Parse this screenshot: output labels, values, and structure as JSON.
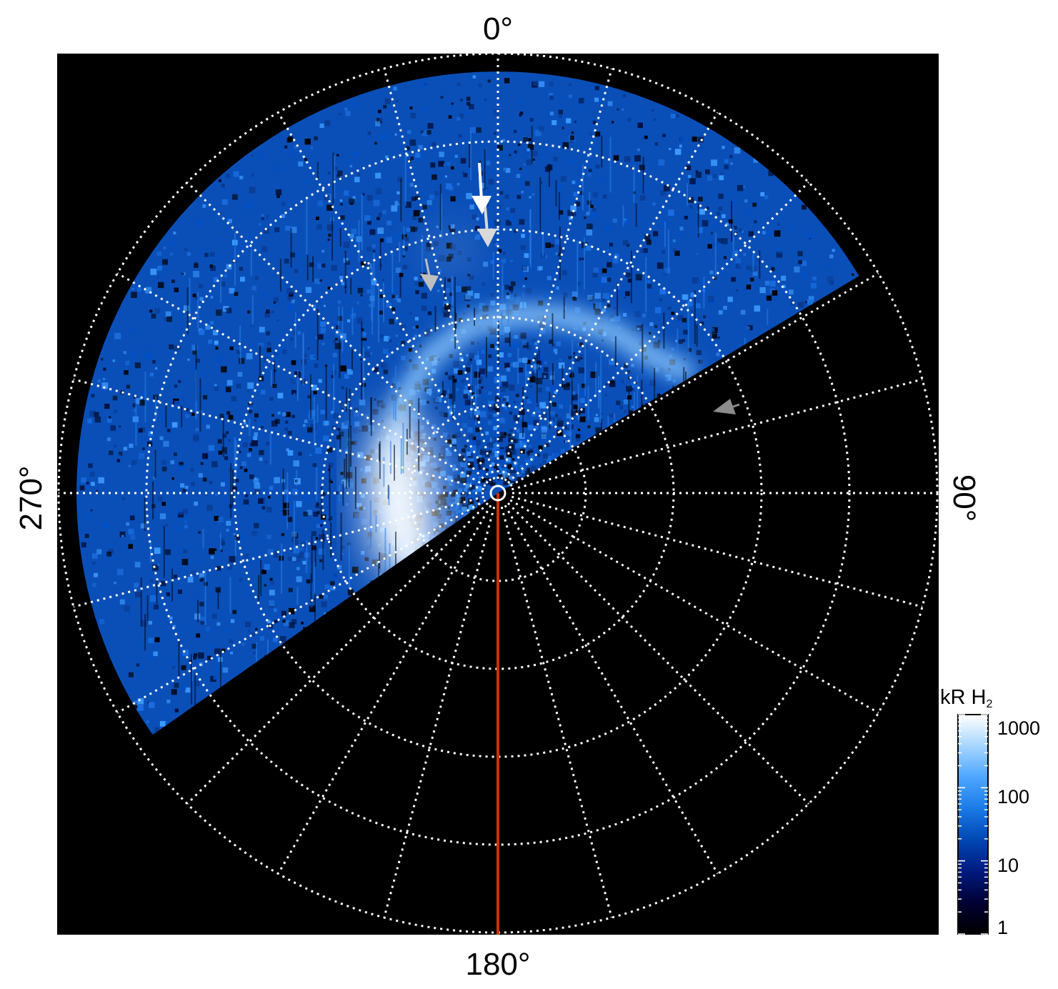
{
  "colors": {
    "background_plot": "#000000",
    "grid": "#ffffff",
    "meridian_line": "#c8320a",
    "colormap": [
      "#000000",
      "#000033",
      "#001a80",
      "#0047b3",
      "#1a7ae6",
      "#4da6ff",
      "#a6d6ff",
      "#ffffff"
    ]
  },
  "polar_plot": {
    "angle_labels": {
      "top": "0°",
      "right": "90°",
      "bottom": "180°",
      "left": "270°"
    },
    "grid": "dotted",
    "arrows": [
      {
        "name": "white-arrow",
        "color": "#ffffff"
      },
      {
        "name": "light-gray-arrow",
        "color": "#d9d9d9"
      },
      {
        "name": "gray-arrow-left",
        "color": "#bfbfbf"
      },
      {
        "name": "gray-arrow-right",
        "color": "#8c8c8c"
      }
    ]
  },
  "colorbar": {
    "title_main": "kR H",
    "title_sub": "2",
    "scale": "log",
    "ticks": [
      "1000",
      "100",
      "10",
      "1"
    ]
  }
}
